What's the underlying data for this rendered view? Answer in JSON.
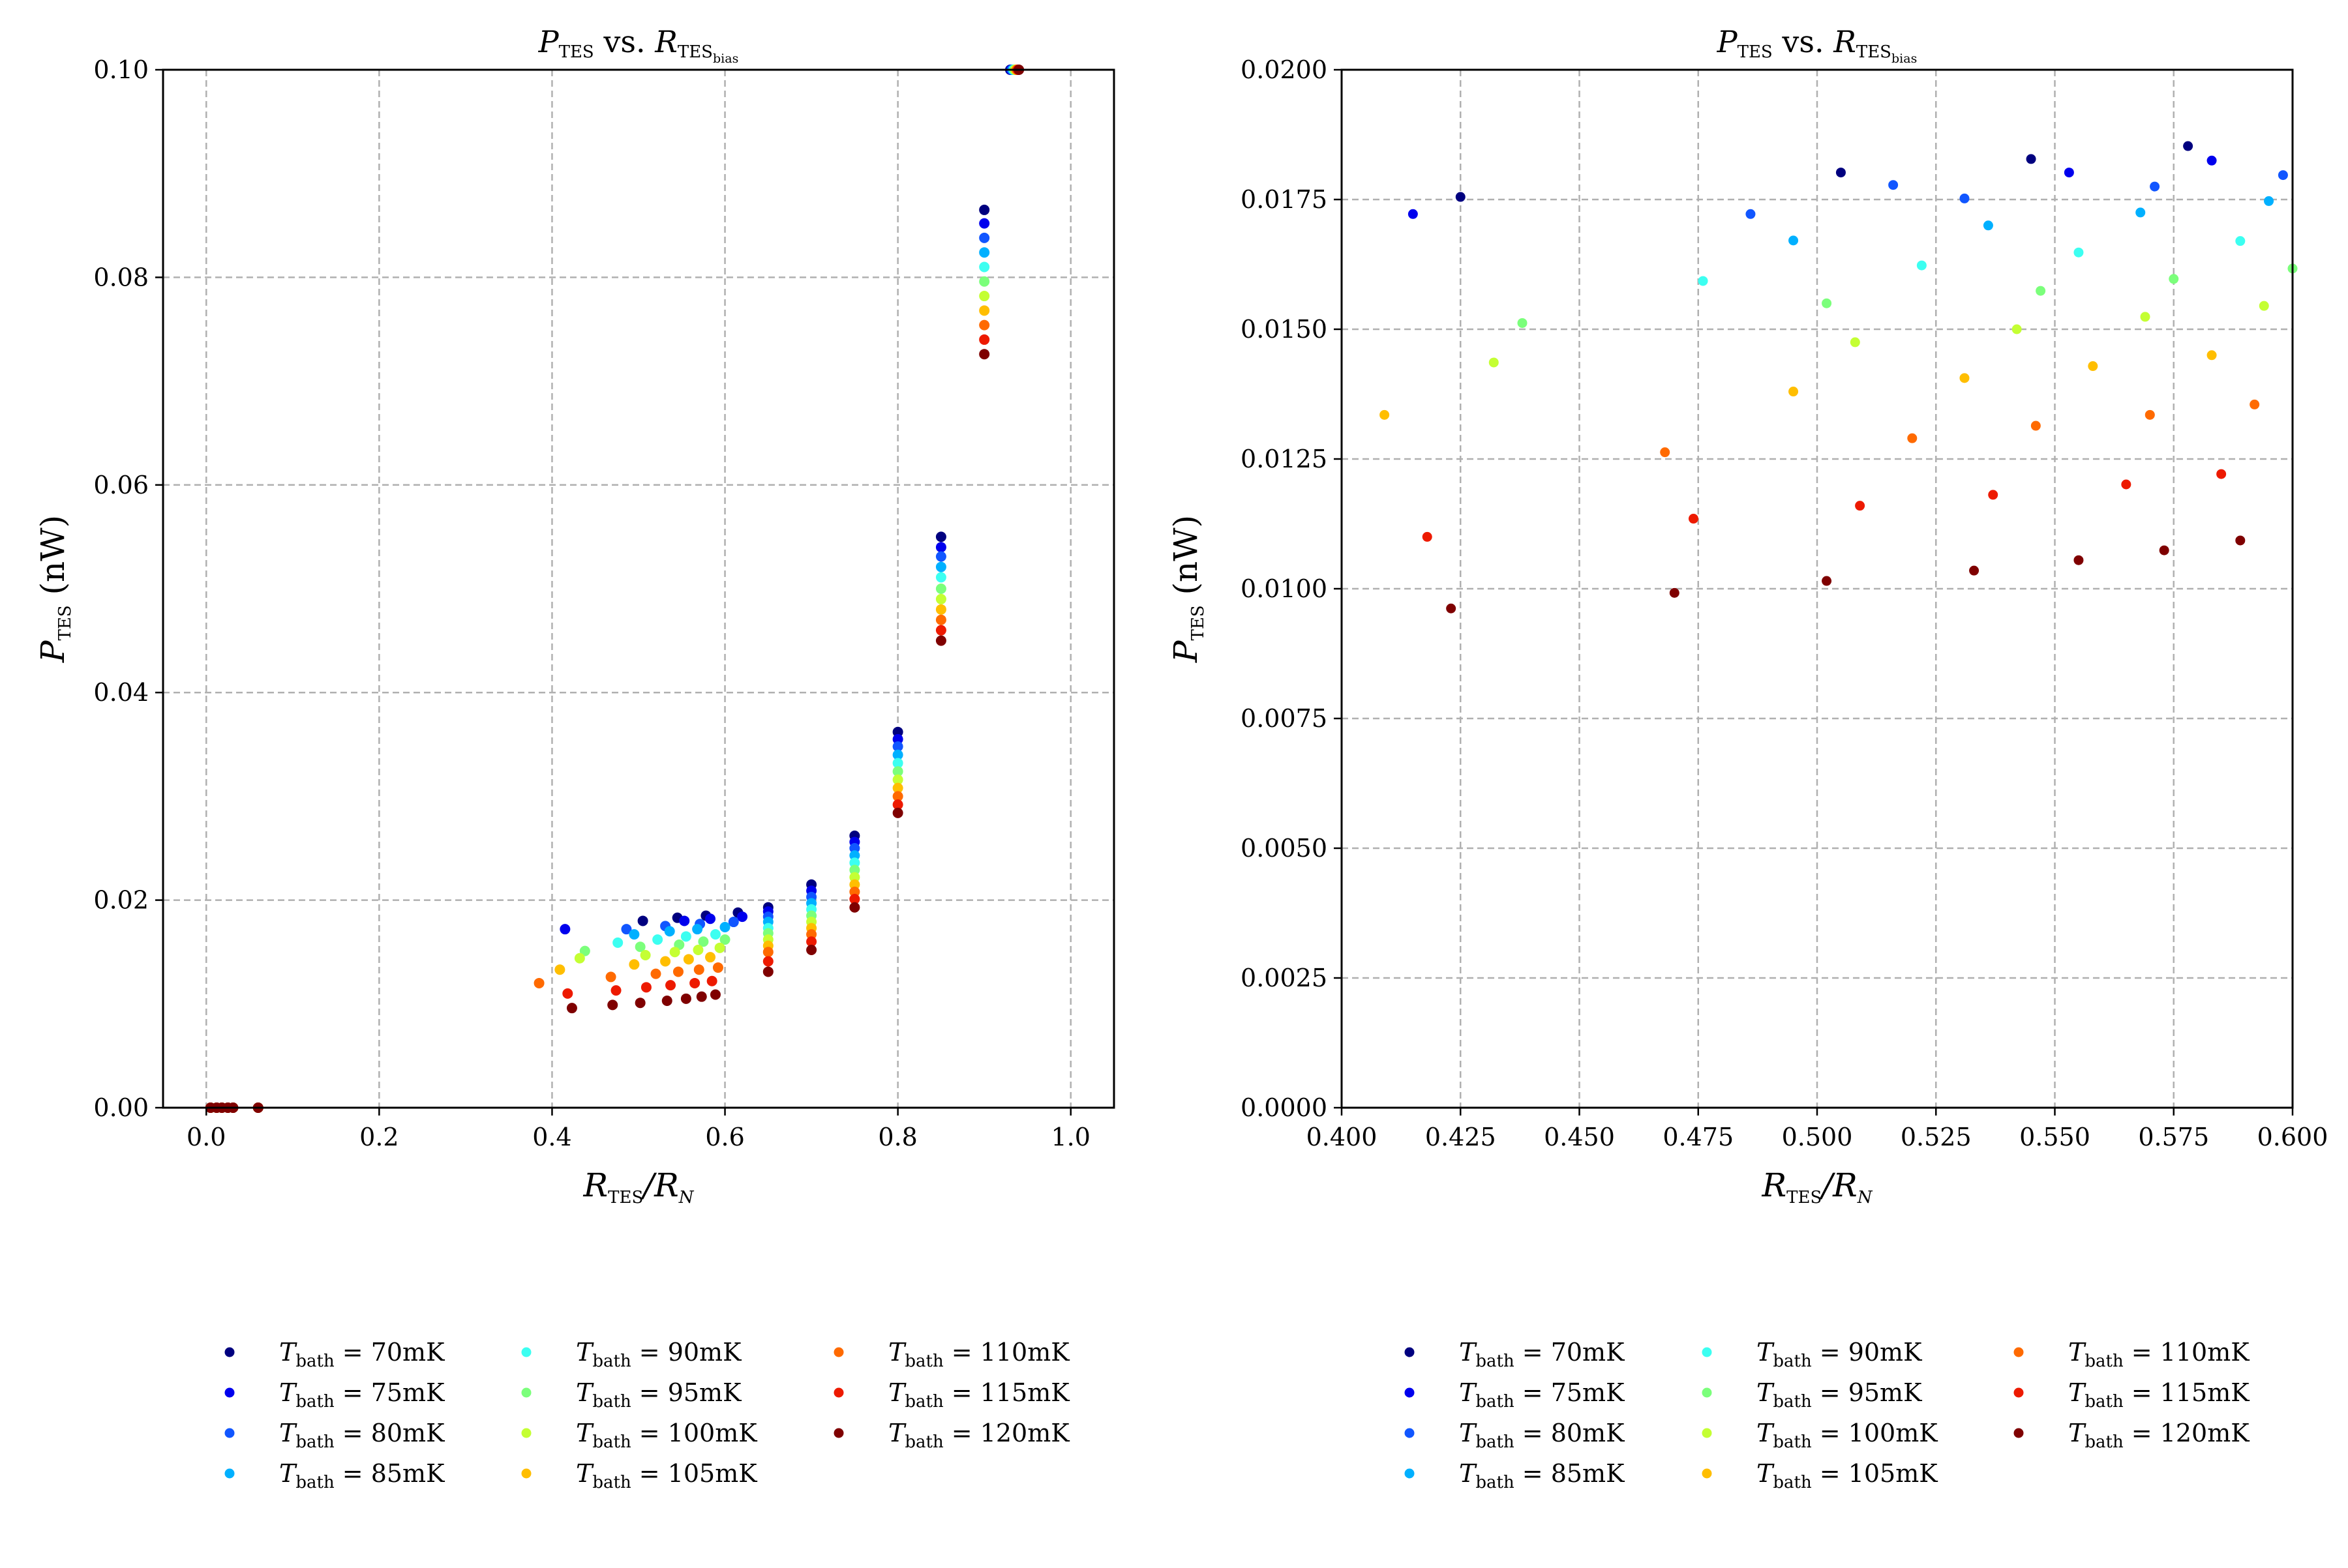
{
  "chart_data": [
    {
      "type": "scatter",
      "title": {
        "main": "P",
        "main_sub": "TES",
        "mid": " vs. ",
        "rhs": "R",
        "rhs_sub": "TES",
        "rhs_subsub": "bias"
      },
      "xlabel": {
        "main": "R",
        "sub": "TES",
        "rest": "/R",
        "sub2": "N"
      },
      "ylabel": {
        "main": "P",
        "sub": "TES",
        "rest": " (nW)"
      },
      "xlim": [
        -0.05,
        1.05
      ],
      "ylim": [
        0.0,
        0.1
      ],
      "xticks": [
        0.0,
        0.2,
        0.4,
        0.6,
        0.8,
        1.0
      ],
      "xtick_labels": [
        "0.0",
        "0.2",
        "0.4",
        "0.6",
        "0.8",
        "1.0"
      ],
      "yticks": [
        0.0,
        0.02,
        0.04,
        0.06,
        0.08,
        0.1
      ],
      "ytick_labels": [
        "0.00",
        "0.02",
        "0.04",
        "0.06",
        "0.08",
        "0.10"
      ],
      "grid": true,
      "legend_position": "bottom (3 columns, below plot)",
      "series": [
        {
          "name": "70mK",
          "color": "#00007f",
          "x": [
            0.005,
            0.012,
            0.018,
            0.025,
            0.031,
            0.06,
            0.505,
            0.545,
            0.578,
            0.615,
            0.65,
            0.7,
            0.75,
            0.8,
            0.85,
            0.9,
            0.93
          ],
          "y": [
            0.0,
            0.0,
            0.0,
            0.0,
            0.0,
            0.0,
            0.018,
            0.0183,
            0.0185,
            0.0188,
            0.0193,
            0.0215,
            0.0262,
            0.0362,
            0.055,
            0.0865,
            0.1
          ]
        },
        {
          "name": "75mK",
          "color": "#0000ed",
          "x": [
            0.005,
            0.012,
            0.018,
            0.025,
            0.031,
            0.06,
            0.415,
            0.553,
            0.583,
            0.62,
            0.65,
            0.7,
            0.75,
            0.8,
            0.85,
            0.9,
            0.931
          ],
          "y": [
            0.0,
            0.0,
            0.0,
            0.0,
            0.0,
            0.0,
            0.0172,
            0.018,
            0.0182,
            0.0184,
            0.0189,
            0.0209,
            0.0256,
            0.0355,
            0.054,
            0.0852,
            0.1
          ]
        },
        {
          "name": "80mK",
          "color": "#1156ff",
          "x": [
            0.005,
            0.012,
            0.018,
            0.025,
            0.031,
            0.06,
            0.486,
            0.531,
            0.571,
            0.61,
            0.65,
            0.7,
            0.75,
            0.8,
            0.85,
            0.9,
            0.932
          ],
          "y": [
            0.0,
            0.0,
            0.0,
            0.0,
            0.0,
            0.0,
            0.0172,
            0.0175,
            0.0177,
            0.0179,
            0.0184,
            0.0203,
            0.025,
            0.0348,
            0.0531,
            0.0838,
            0.1
          ]
        },
        {
          "name": "85mK",
          "color": "#00b0ff",
          "x": [
            0.005,
            0.012,
            0.018,
            0.025,
            0.031,
            0.06,
            0.495,
            0.536,
            0.568,
            0.6,
            0.65,
            0.7,
            0.75,
            0.8,
            0.85,
            0.9,
            0.933
          ],
          "y": [
            0.0,
            0.0,
            0.0,
            0.0,
            0.0,
            0.0,
            0.0167,
            0.017,
            0.0172,
            0.0174,
            0.0179,
            0.0197,
            0.0243,
            0.034,
            0.0521,
            0.0824,
            0.1
          ]
        },
        {
          "name": "90mK",
          "color": "#3cfff1",
          "x": [
            0.005,
            0.012,
            0.018,
            0.025,
            0.031,
            0.06,
            0.476,
            0.522,
            0.555,
            0.589,
            0.65,
            0.7,
            0.75,
            0.8,
            0.85,
            0.9,
            0.934
          ],
          "y": [
            0.0,
            0.0,
            0.0,
            0.0,
            0.0,
            0.0,
            0.0159,
            0.0162,
            0.0165,
            0.0167,
            0.0173,
            0.0191,
            0.0236,
            0.0332,
            0.0511,
            0.081,
            0.1
          ]
        },
        {
          "name": "95mK",
          "color": "#7bff7b",
          "x": [
            0.005,
            0.012,
            0.018,
            0.025,
            0.031,
            0.06,
            0.438,
            0.502,
            0.547,
            0.575,
            0.6,
            0.65,
            0.7,
            0.75,
            0.8,
            0.85,
            0.9,
            0.935
          ],
          "y": [
            0.0,
            0.0,
            0.0,
            0.0,
            0.0,
            0.0,
            0.0151,
            0.0155,
            0.0157,
            0.016,
            0.0162,
            0.0168,
            0.0185,
            0.0229,
            0.0324,
            0.05,
            0.0796,
            0.1
          ]
        },
        {
          "name": "100mK",
          "color": "#c4ff33",
          "x": [
            0.005,
            0.012,
            0.018,
            0.025,
            0.031,
            0.06,
            0.432,
            0.508,
            0.542,
            0.569,
            0.594,
            0.65,
            0.7,
            0.75,
            0.8,
            0.85,
            0.9,
            0.936
          ],
          "y": [
            0.0,
            0.0,
            0.0,
            0.0,
            0.0,
            0.0,
            0.0144,
            0.0147,
            0.015,
            0.0152,
            0.0154,
            0.0162,
            0.0179,
            0.0222,
            0.0316,
            0.049,
            0.0782,
            0.1
          ]
        },
        {
          "name": "105mK",
          "color": "#ffbe00",
          "x": [
            0.005,
            0.012,
            0.018,
            0.025,
            0.031,
            0.06,
            0.409,
            0.495,
            0.531,
            0.558,
            0.583,
            0.65,
            0.7,
            0.75,
            0.8,
            0.85,
            0.9,
            0.937
          ],
          "y": [
            0.0,
            0.0,
            0.0,
            0.0,
            0.0,
            0.0,
            0.0133,
            0.0138,
            0.0141,
            0.0143,
            0.0145,
            0.0156,
            0.0173,
            0.0215,
            0.0308,
            0.048,
            0.0768,
            0.1
          ]
        },
        {
          "name": "110mK",
          "color": "#ff6a00",
          "x": [
            0.005,
            0.012,
            0.018,
            0.025,
            0.031,
            0.06,
            0.385,
            0.468,
            0.52,
            0.546,
            0.57,
            0.592,
            0.65,
            0.7,
            0.75,
            0.8,
            0.85,
            0.9,
            0.938
          ],
          "y": [
            0.0,
            0.0,
            0.0,
            0.0,
            0.0,
            0.0,
            0.012,
            0.0126,
            0.0129,
            0.0131,
            0.0133,
            0.0135,
            0.015,
            0.0167,
            0.0208,
            0.03,
            0.047,
            0.0754,
            0.1
          ]
        },
        {
          "name": "115mK",
          "color": "#ed1a00",
          "x": [
            0.005,
            0.012,
            0.018,
            0.025,
            0.031,
            0.06,
            0.418,
            0.474,
            0.509,
            0.537,
            0.565,
            0.585,
            0.65,
            0.7,
            0.75,
            0.8,
            0.85,
            0.9,
            0.939
          ],
          "y": [
            0.0,
            0.0,
            0.0,
            0.0,
            0.0,
            0.0,
            0.011,
            0.0113,
            0.0116,
            0.0118,
            0.012,
            0.0122,
            0.0141,
            0.016,
            0.0201,
            0.0292,
            0.046,
            0.074,
            0.1
          ]
        },
        {
          "name": "120mK",
          "color": "#7f0000",
          "x": [
            0.005,
            0.012,
            0.018,
            0.025,
            0.031,
            0.06,
            0.423,
            0.47,
            0.502,
            0.533,
            0.555,
            0.573,
            0.589,
            0.65,
            0.7,
            0.75,
            0.8,
            0.85,
            0.9,
            0.94
          ],
          "y": [
            0.0,
            0.0,
            0.0,
            0.0,
            0.0,
            0.0,
            0.0096,
            0.0099,
            0.0101,
            0.0103,
            0.0105,
            0.0107,
            0.0109,
            0.0131,
            0.0152,
            0.0193,
            0.0284,
            0.045,
            0.0726,
            0.1
          ]
        }
      ]
    },
    {
      "type": "scatter",
      "title": {
        "main": "P",
        "main_sub": "TES",
        "mid": " vs. ",
        "rhs": "R",
        "rhs_sub": "TES",
        "rhs_subsub": "bias"
      },
      "xlabel": {
        "main": "R",
        "sub": "TES",
        "rest": "/R",
        "sub2": "N"
      },
      "ylabel": {
        "main": "P",
        "sub": "TES",
        "rest": " (nW)"
      },
      "xlim": [
        0.4,
        0.6
      ],
      "ylim": [
        0.0,
        0.02
      ],
      "xticks": [
        0.4,
        0.425,
        0.45,
        0.475,
        0.5,
        0.525,
        0.55,
        0.575,
        0.6
      ],
      "xtick_labels": [
        "0.400",
        "0.425",
        "0.450",
        "0.475",
        "0.500",
        "0.525",
        "0.550",
        "0.575",
        "0.600"
      ],
      "yticks": [
        0.0,
        0.0025,
        0.005,
        0.0075,
        0.01,
        0.0125,
        0.015,
        0.0175,
        0.02
      ],
      "ytick_labels": [
        "0.0000",
        "0.0025",
        "0.0050",
        "0.0075",
        "0.0100",
        "0.0125",
        "0.0150",
        "0.0175",
        "0.0200"
      ],
      "grid": true,
      "legend_position": "bottom (3 columns, below plot)",
      "series": [
        {
          "name": "70mK",
          "color": "#00007f",
          "x": [
            0.425,
            0.505,
            0.545,
            0.578
          ],
          "y": [
            0.01755,
            0.01802,
            0.01828,
            0.01853
          ]
        },
        {
          "name": "75mK",
          "color": "#0000ed",
          "x": [
            0.415,
            0.553,
            0.583
          ],
          "y": [
            0.01722,
            0.01802,
            0.01825
          ]
        },
        {
          "name": "80mK",
          "color": "#1156ff",
          "x": [
            0.486,
            0.516,
            0.531,
            0.571,
            0.598
          ],
          "y": [
            0.01722,
            0.01778,
            0.01752,
            0.01775,
            0.01797
          ]
        },
        {
          "name": "85mK",
          "color": "#00b0ff",
          "x": [
            0.495,
            0.536,
            0.568,
            0.595
          ],
          "y": [
            0.01671,
            0.017,
            0.01725,
            0.01747
          ]
        },
        {
          "name": "90mK",
          "color": "#3cfff1",
          "x": [
            0.476,
            0.522,
            0.555,
            0.589
          ],
          "y": [
            0.01593,
            0.01623,
            0.01648,
            0.0167
          ]
        },
        {
          "name": "95mK",
          "color": "#7bff7b",
          "x": [
            0.438,
            0.502,
            0.547,
            0.575,
            0.6
          ],
          "y": [
            0.01512,
            0.0155,
            0.01574,
            0.01597,
            0.01617
          ]
        },
        {
          "name": "100mK",
          "color": "#c4ff33",
          "x": [
            0.432,
            0.508,
            0.542,
            0.569,
            0.594
          ],
          "y": [
            0.01436,
            0.01475,
            0.015,
            0.01524,
            0.01545
          ]
        },
        {
          "name": "105mK",
          "color": "#ffbe00",
          "x": [
            0.409,
            0.495,
            0.531,
            0.558,
            0.583
          ],
          "y": [
            0.01335,
            0.0138,
            0.01406,
            0.01429,
            0.0145
          ]
        },
        {
          "name": "110mK",
          "color": "#ff6a00",
          "x": [
            0.468,
            0.52,
            0.546,
            0.57,
            0.592
          ],
          "y": [
            0.01263,
            0.0129,
            0.01314,
            0.01335,
            0.01355
          ]
        },
        {
          "name": "115mK",
          "color": "#ed1a00",
          "x": [
            0.418,
            0.474,
            0.509,
            0.537,
            0.565,
            0.585
          ],
          "y": [
            0.011,
            0.01135,
            0.0116,
            0.01181,
            0.01201,
            0.01221
          ]
        },
        {
          "name": "120mK",
          "color": "#7f0000",
          "x": [
            0.423,
            0.47,
            0.502,
            0.533,
            0.555,
            0.573,
            0.589
          ],
          "y": [
            0.00962,
            0.00992,
            0.01015,
            0.01035,
            0.01055,
            0.01074,
            0.01093
          ]
        }
      ]
    }
  ],
  "legend": {
    "prefix_main": "T",
    "prefix_sub": "bath",
    "equals": " = "
  }
}
